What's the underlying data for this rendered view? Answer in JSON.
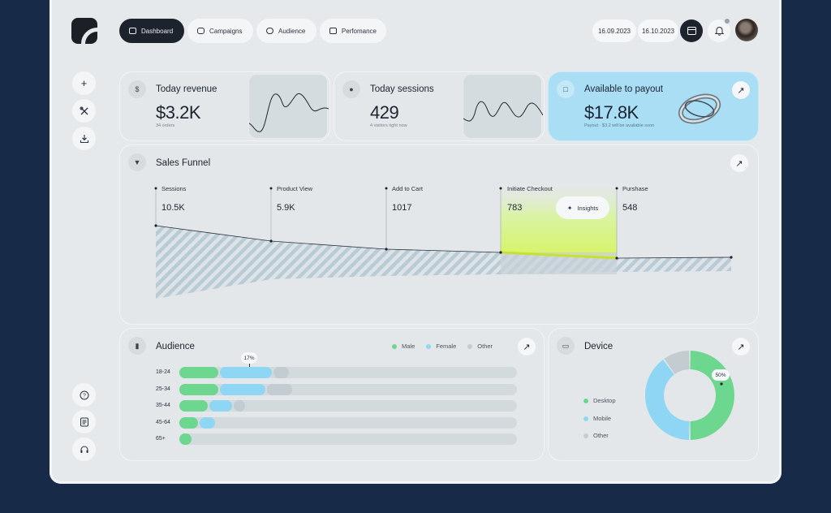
{
  "nav": {
    "tabs": [
      {
        "label": "Dashboard",
        "icon": "dashboard-icon",
        "active": true
      },
      {
        "label": "Campaigns",
        "icon": "wallet-icon",
        "active": false
      },
      {
        "label": "Audience",
        "icon": "audience-icon",
        "active": false
      },
      {
        "label": "Perfomance",
        "icon": "performance-icon",
        "active": false
      }
    ],
    "date_from": "16.09.2023",
    "date_to": "16.10.2023"
  },
  "sidebar": {
    "top": [
      {
        "icon": "plus-icon"
      },
      {
        "icon": "tools-icon"
      },
      {
        "icon": "download-icon"
      }
    ],
    "bottom": [
      {
        "icon": "help-icon"
      },
      {
        "icon": "document-icon"
      },
      {
        "icon": "headset-icon"
      }
    ]
  },
  "revenue": {
    "title": "Today revenue",
    "value": "$3.2K",
    "sub": "34 orders"
  },
  "sessions": {
    "title": "Today sessions",
    "value": "429",
    "sub": "4 visitors right now"
  },
  "payout": {
    "title": "Available to payout",
    "value": "$17.8K",
    "sub": "Payout · $3.2 will be available soon"
  },
  "funnel": {
    "title": "Sales Funnel",
    "insights_label": "Insights",
    "stages": [
      {
        "label": "Sessions",
        "value": "10.5K"
      },
      {
        "label": "Product View",
        "value": "5.9K"
      },
      {
        "label": "Add to Cart",
        "value": "1017"
      },
      {
        "label": "Initiate Checkout",
        "value": "783"
      },
      {
        "label": "Purshase",
        "value": "548"
      }
    ]
  },
  "audience": {
    "title": "Audience",
    "legend": [
      {
        "label": "Male",
        "color": "#6dd68f"
      },
      {
        "label": "Female",
        "color": "#8fd6f4"
      },
      {
        "label": "Other",
        "color": "#c2ccd1"
      }
    ],
    "callout": "17%",
    "rows": [
      {
        "age": "18-24",
        "male": 0.12,
        "female": 0.16,
        "other": 0.05
      },
      {
        "age": "25-34",
        "male": 0.12,
        "female": 0.14,
        "other": 0.08
      },
      {
        "age": "35-44",
        "male": 0.09,
        "female": 0.07,
        "other": 0.04
      },
      {
        "age": "45-64",
        "male": 0.06,
        "female": 0.05,
        "other": 0
      },
      {
        "age": "65+",
        "male": 0.04,
        "female": 0,
        "other": 0
      }
    ]
  },
  "device": {
    "title": "Device",
    "callout": "50%",
    "items": [
      {
        "label": "Desktop",
        "share": 0.5,
        "color": "#6dd68f"
      },
      {
        "label": "Mobile",
        "share": 0.4,
        "color": "#8fd6f4"
      },
      {
        "label": "Other",
        "share": 0.1,
        "color": "#c2ccd1"
      }
    ]
  }
}
